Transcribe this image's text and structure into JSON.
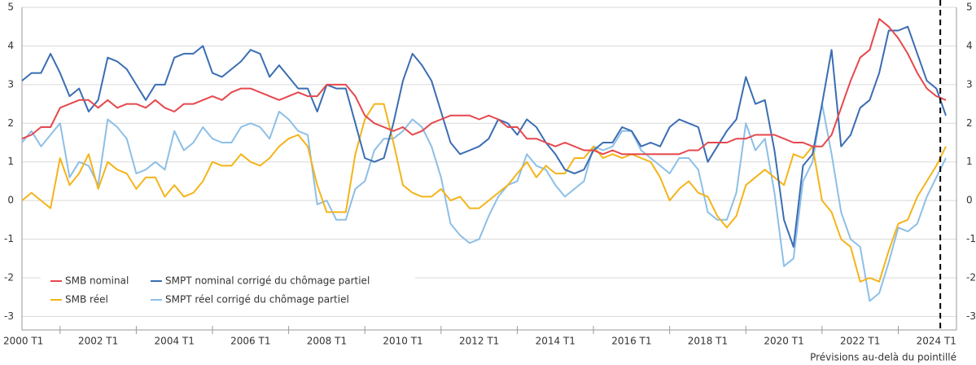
{
  "chart_data": {
    "type": "line",
    "note": "Prévisions au-delà du pointillé",
    "categories": [
      "2000 T1",
      null,
      null,
      null,
      null,
      null,
      null,
      null,
      "2002 T1",
      null,
      null,
      null,
      null,
      null,
      null,
      null,
      "2004 T1",
      null,
      null,
      null,
      null,
      null,
      null,
      null,
      "2006 T1",
      null,
      null,
      null,
      null,
      null,
      null,
      null,
      "2008 T1",
      null,
      null,
      null,
      null,
      null,
      null,
      null,
      "2010 T1",
      null,
      null,
      null,
      null,
      null,
      null,
      null,
      "2012 T1",
      null,
      null,
      null,
      null,
      null,
      null,
      null,
      "2014 T1",
      null,
      null,
      null,
      null,
      null,
      null,
      null,
      "2016 T1",
      null,
      null,
      null,
      null,
      null,
      null,
      null,
      "2018 T1",
      null,
      null,
      null,
      null,
      null,
      null,
      null,
      "2020 T1",
      null,
      null,
      null,
      null,
      null,
      null,
      null,
      "2022 T1",
      null,
      null,
      null,
      null,
      null,
      null,
      null,
      "2024 T1",
      null
    ],
    "series": [
      {
        "name": "SMB nominal",
        "color": "#e5484d",
        "values": [
          1.6,
          1.7,
          1.9,
          1.9,
          2.4,
          2.5,
          2.6,
          2.6,
          2.4,
          2.6,
          2.4,
          2.5,
          2.5,
          2.4,
          2.6,
          2.4,
          2.3,
          2.5,
          2.5,
          2.6,
          2.7,
          2.6,
          2.8,
          2.9,
          2.9,
          2.8,
          2.7,
          2.6,
          2.7,
          2.8,
          2.7,
          2.7,
          3.0,
          3.0,
          3.0,
          2.7,
          2.2,
          2.0,
          1.9,
          1.8,
          1.9,
          1.7,
          1.8,
          2.0,
          2.1,
          2.2,
          2.2,
          2.2,
          2.1,
          2.2,
          2.1,
          1.9,
          1.9,
          1.6,
          1.6,
          1.5,
          1.4,
          1.5,
          1.4,
          1.3,
          1.3,
          1.2,
          1.3,
          1.2,
          1.2,
          1.2,
          1.2,
          1.2,
          1.2,
          1.2,
          1.3,
          1.3,
          1.5,
          1.5,
          1.5,
          1.6,
          1.6,
          1.7,
          1.7,
          1.7,
          1.6,
          1.5,
          1.5,
          1.4,
          1.4,
          1.7,
          2.4,
          3.1,
          3.7,
          3.9,
          4.7,
          4.5,
          4.2,
          3.8,
          3.3,
          2.9,
          2.7,
          2.6
        ]
      },
      {
        "name": "SMPT nominal corrigé du chômage partiel",
        "color": "#3a6db3",
        "values": [
          3.1,
          3.3,
          3.3,
          3.8,
          3.3,
          2.7,
          2.9,
          2.3,
          2.6,
          3.7,
          3.6,
          3.4,
          3.0,
          2.6,
          3.0,
          3.0,
          3.7,
          3.8,
          3.8,
          4.0,
          3.3,
          3.2,
          3.4,
          3.6,
          3.9,
          3.8,
          3.2,
          3.5,
          3.2,
          2.9,
          2.9,
          2.3,
          3.0,
          2.9,
          2.9,
          2.0,
          1.1,
          1.0,
          1.1,
          2.0,
          3.1,
          3.8,
          3.5,
          3.1,
          2.3,
          1.5,
          1.2,
          1.3,
          1.4,
          1.6,
          2.1,
          2.0,
          1.7,
          2.1,
          1.9,
          1.5,
          1.2,
          0.8,
          0.7,
          0.8,
          1.3,
          1.5,
          1.5,
          1.9,
          1.8,
          1.4,
          1.5,
          1.4,
          1.9,
          2.1,
          2.0,
          1.9,
          1.0,
          1.4,
          1.8,
          2.1,
          3.2,
          2.5,
          2.6,
          1.3,
          -0.5,
          -1.2,
          0.9,
          1.2,
          2.5,
          3.9,
          1.4,
          1.7,
          2.4,
          2.6,
          3.3,
          4.4,
          4.4,
          4.5,
          3.8,
          3.1,
          2.9,
          2.2
        ]
      },
      {
        "name": "SMB réel",
        "color": "#f4b41a",
        "values": [
          0.0,
          0.2,
          0.0,
          -0.2,
          1.1,
          0.4,
          0.7,
          1.2,
          0.3,
          1.0,
          0.8,
          0.7,
          0.3,
          0.6,
          0.6,
          0.1,
          0.4,
          0.1,
          0.2,
          0.5,
          1.0,
          0.9,
          0.9,
          1.2,
          1.0,
          0.9,
          1.1,
          1.4,
          1.6,
          1.7,
          1.4,
          0.4,
          -0.3,
          -0.3,
          -0.3,
          1.2,
          2.1,
          2.5,
          2.5,
          1.5,
          0.4,
          0.2,
          0.1,
          0.1,
          0.3,
          0.0,
          0.1,
          -0.2,
          -0.2,
          0.0,
          0.2,
          0.4,
          0.7,
          1.0,
          0.6,
          0.9,
          0.7,
          0.7,
          1.1,
          1.1,
          1.4,
          1.1,
          1.2,
          1.1,
          1.2,
          1.1,
          1.0,
          0.6,
          0.0,
          0.3,
          0.5,
          0.2,
          0.1,
          -0.4,
          -0.7,
          -0.4,
          0.4,
          0.6,
          0.8,
          0.6,
          0.4,
          1.2,
          1.1,
          1.4,
          0.0,
          -0.3,
          -1.0,
          -1.2,
          -2.1,
          -2.0,
          -2.1,
          -1.3,
          -0.6,
          -0.5,
          0.1,
          0.5,
          0.9,
          1.4
        ]
      },
      {
        "name": "SMPT réel corrigé du chômage partiel",
        "color": "#8dbfe6",
        "values": [
          1.5,
          1.8,
          1.4,
          1.7,
          2.0,
          0.6,
          1.0,
          0.9,
          0.4,
          2.1,
          1.9,
          1.6,
          0.7,
          0.8,
          1.0,
          0.8,
          1.8,
          1.3,
          1.5,
          1.9,
          1.6,
          1.5,
          1.5,
          1.9,
          2.0,
          1.9,
          1.6,
          2.3,
          2.1,
          1.8,
          1.7,
          -0.1,
          0.0,
          -0.5,
          -0.5,
          0.3,
          0.5,
          1.3,
          1.6,
          1.6,
          1.8,
          2.1,
          1.9,
          1.4,
          0.6,
          -0.6,
          -0.9,
          -1.1,
          -1.0,
          -0.4,
          0.1,
          0.4,
          0.5,
          1.2,
          0.9,
          0.8,
          0.4,
          0.1,
          0.3,
          0.5,
          1.4,
          1.3,
          1.4,
          1.8,
          1.8,
          1.3,
          1.1,
          0.9,
          0.7,
          1.1,
          1.1,
          0.8,
          -0.3,
          -0.5,
          -0.5,
          0.2,
          2.0,
          1.3,
          1.6,
          0.2,
          -1.7,
          -1.5,
          0.5,
          1.0,
          2.5,
          1.2,
          -0.3,
          -1.0,
          -1.2,
          -2.6,
          -2.4,
          -1.6,
          -0.7,
          -0.8,
          -0.6,
          0.1,
          0.6,
          1.1
        ]
      }
    ],
    "ylim": [
      -3.35,
      5
    ],
    "yticks": [
      -3,
      -2,
      -1,
      0,
      1,
      2,
      3,
      4,
      5
    ],
    "grid": true
  }
}
